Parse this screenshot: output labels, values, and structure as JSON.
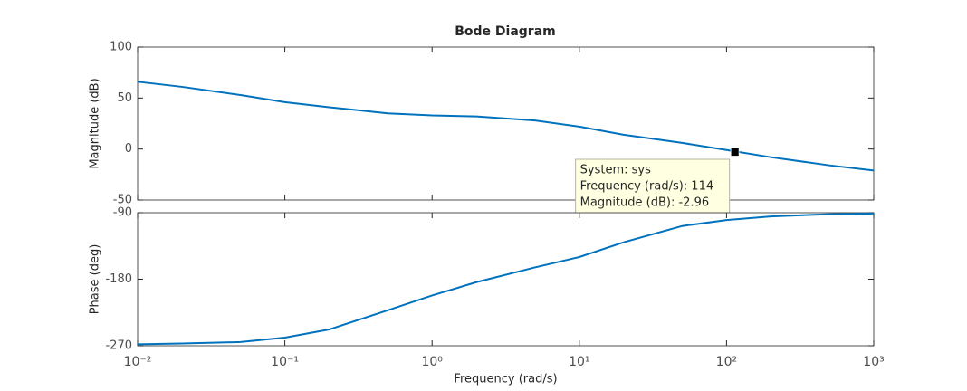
{
  "chart_data": [
    {
      "type": "line",
      "title": "Bode Diagram",
      "ylabel": "Magnitude (dB)",
      "x": [
        0.01,
        0.02,
        0.05,
        0.1,
        0.2,
        0.5,
        1,
        2,
        5,
        10,
        20,
        50,
        100,
        200,
        500,
        1000
      ],
      "series": [
        {
          "name": "sys",
          "color": "#0072bd",
          "values": [
            66,
            61,
            53,
            46,
            41,
            35,
            33,
            32,
            28,
            22,
            14,
            6,
            -1,
            -8,
            -16,
            -21
          ]
        }
      ],
      "xlim": [
        0.01,
        1000
      ],
      "xscale": "log",
      "ylim": [
        -50,
        100
      ],
      "yticks": [
        -50,
        0,
        50,
        100
      ],
      "datatip": {
        "x": 114,
        "y": -2.96,
        "lines": [
          "System: sys",
          "Frequency (rad/s): 114",
          "Magnitude (dB): -2.96"
        ]
      }
    },
    {
      "type": "line",
      "ylabel": "Phase (deg)",
      "xlabel": "Frequency  (rad/s)",
      "x": [
        0.01,
        0.02,
        0.05,
        0.1,
        0.2,
        0.5,
        1,
        2,
        5,
        10,
        20,
        50,
        100,
        200,
        500,
        1000
      ],
      "series": [
        {
          "name": "sys",
          "color": "#0072bd",
          "values": [
            -268,
            -267,
            -265,
            -259,
            -248,
            -222,
            -202,
            -184,
            -164,
            -150,
            -130,
            -108,
            -100,
            -95,
            -92,
            -91
          ]
        }
      ],
      "xlim": [
        0.01,
        1000
      ],
      "xscale": "log",
      "xticks": [
        {
          "value": 0.01,
          "label": "10⁻²"
        },
        {
          "value": 0.1,
          "label": "10⁻¹"
        },
        {
          "value": 1,
          "label": "10⁰"
        },
        {
          "value": 10,
          "label": "10¹"
        },
        {
          "value": 100,
          "label": "10²"
        },
        {
          "value": 1000,
          "label": "10³"
        }
      ],
      "ylim": [
        -270,
        -90
      ],
      "yticks": [
        -270,
        -180,
        -90
      ]
    }
  ]
}
